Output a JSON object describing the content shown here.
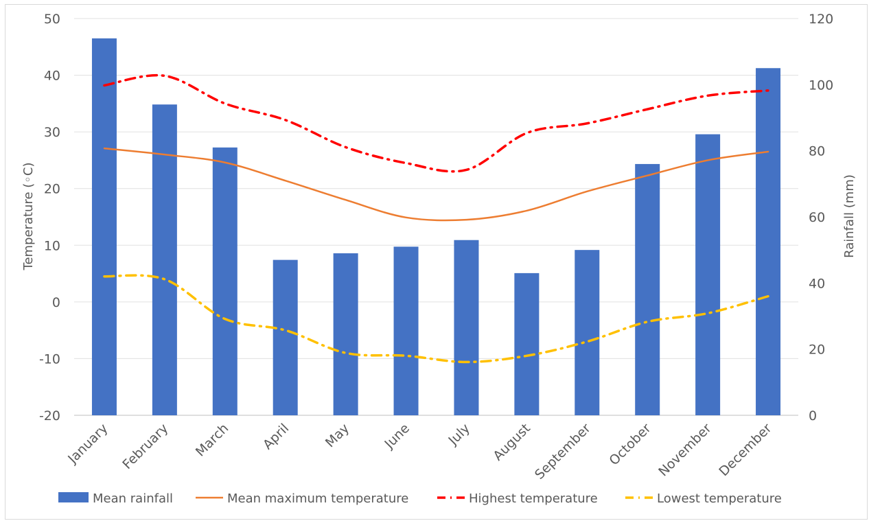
{
  "chart_data": {
    "type": "bar",
    "categories": [
      "January",
      "February",
      "March",
      "April",
      "May",
      "June",
      "July",
      "August",
      "September",
      "October",
      "November",
      "December"
    ],
    "series": [
      {
        "name": "Mean rainfall",
        "type": "bar",
        "axis": "right",
        "color": "#4472c4",
        "values": [
          114,
          94,
          81,
          47,
          49,
          51,
          53,
          43,
          50,
          76,
          85,
          105
        ]
      },
      {
        "name": "Mean maximum temperature",
        "type": "line",
        "axis": "left",
        "color": "#ed7d31",
        "dash": "solid",
        "values": [
          27.1,
          26.0,
          24.6,
          21.4,
          18.0,
          14.9,
          14.5,
          16.1,
          19.5,
          22.3,
          25.0,
          26.5
        ]
      },
      {
        "name": "Highest temperature",
        "type": "line",
        "axis": "left",
        "color": "#ff0000",
        "dash": "dash-dot",
        "values": [
          38.2,
          39.9,
          35.0,
          32.1,
          27.3,
          24.5,
          23.3,
          29.8,
          31.5,
          34.0,
          36.4,
          37.3
        ]
      },
      {
        "name": "Lowest temperature",
        "type": "line",
        "axis": "left",
        "color": "#ffc000",
        "dash": "dash-dot",
        "values": [
          4.5,
          4.0,
          -3.0,
          -5.0,
          -9.0,
          -9.5,
          -10.6,
          -9.5,
          -7.0,
          -3.5,
          -2.0,
          1.0
        ]
      }
    ],
    "ylabel_left": "Temperature (◦C)",
    "ylabel_right": "Rainfall (mm)",
    "ylim_left": [
      -20,
      50
    ],
    "yticks_left": [
      -20,
      -10,
      0,
      10,
      20,
      30,
      40,
      50
    ],
    "ylim_right": [
      0,
      120
    ],
    "yticks_right": [
      0,
      20,
      40,
      60,
      80,
      100,
      120
    ],
    "grid": true,
    "legend_position": "bottom"
  }
}
